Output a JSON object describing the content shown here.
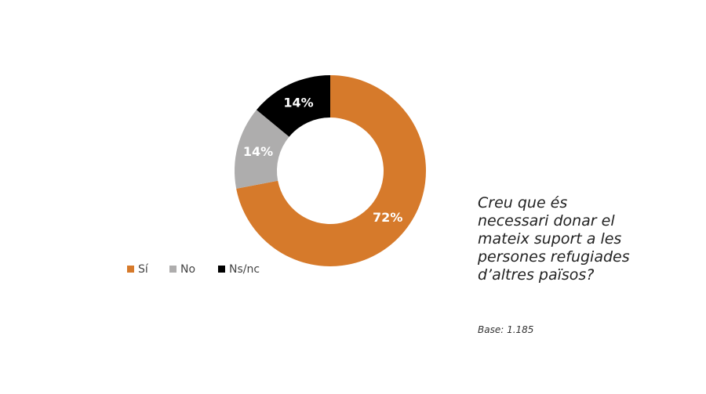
{
  "chart_data": {
    "type": "donut",
    "categories": [
      "Sí",
      "No",
      "Ns/nc"
    ],
    "values": [
      72,
      14,
      14
    ],
    "value_labels": [
      "72%",
      "14%",
      "14%"
    ],
    "colors": [
      "#d67a2b",
      "#aeadad",
      "#000000"
    ],
    "question": [
      "Creu que és",
      "necessari donar el",
      "mateix suport a les",
      "persones refugiades",
      "d’altres països?"
    ],
    "base": "Base: 1.185"
  }
}
